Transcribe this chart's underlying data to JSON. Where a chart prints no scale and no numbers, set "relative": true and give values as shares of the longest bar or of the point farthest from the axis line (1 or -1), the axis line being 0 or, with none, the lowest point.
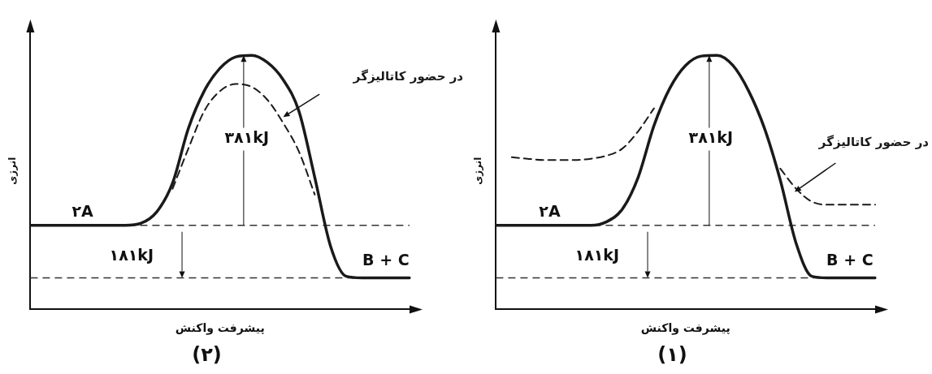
{
  "chart_data": [
    {
      "type": "line",
      "title": "(۱)",
      "xlabel": "پیشرفت واکنش",
      "ylabel": "انرژی",
      "relative": true,
      "marker": "none",
      "legend": false,
      "categories": [
        null,
        null,
        null,
        null,
        null,
        null,
        null,
        null,
        null,
        null,
        null,
        null,
        null,
        null,
        null,
        null,
        null,
        null,
        null,
        null,
        null,
        null,
        null,
        null,
        null
      ],
      "series": [
        {
          "color": "#1a1a1a",
          "line_style": "solid",
          "values": [
            0.331,
            0.331,
            0.331,
            0.331,
            0.331,
            0.331,
            0.331,
            0.345,
            0.395,
            0.52,
            0.723,
            0.87,
            0.96,
            0.997,
            1,
            0.96,
            0.859,
            0.712,
            0.508,
            0.26,
            0.13,
            0.124,
            0.124,
            0.124,
            0.124
          ]
        },
        {
          "name": "در حضور کاتالیزگر",
          "color": "#1a1a1a",
          "line_style": "dashed",
          "values": [
            null,
            0.599,
            0.593,
            0.588,
            0.588,
            0.588,
            0.593,
            0.605,
            0.633,
            0.701,
            0.791,
            null,
            null,
            null,
            null,
            null,
            null,
            null,
            0.554,
            0.475,
            0.424,
            0.412,
            0.412,
            0.412,
            0.412
          ]
        }
      ],
      "ref_lines": [
        {
          "axis": "y",
          "value": 0.331,
          "color": "#333333",
          "line_style": "dashed"
        },
        {
          "axis": "y",
          "value": 0.124,
          "color": "#333333",
          "line_style": "dashed"
        }
      ],
      "annotations": [
        "۲A",
        "B + C",
        "۳۸۱kJ",
        "۱۸۱kJ"
      ]
    },
    {
      "type": "line",
      "title": "(۲)",
      "xlabel": "پیشرفت واکنش",
      "ylabel": "انرژی",
      "relative": true,
      "marker": "none",
      "legend": false,
      "categories": [
        null,
        null,
        null,
        null,
        null,
        null,
        null,
        null,
        null,
        null,
        null,
        null,
        null,
        null,
        null,
        null,
        null,
        null,
        null,
        null,
        null,
        null,
        null,
        null,
        null
      ],
      "series": [
        {
          "color": "#1a1a1a",
          "line_style": "solid",
          "values": [
            0.331,
            0.331,
            0.331,
            0.331,
            0.331,
            0.331,
            0.331,
            0.339,
            0.384,
            0.497,
            0.712,
            0.859,
            0.949,
            0.994,
            1,
            0.972,
            0.904,
            0.78,
            0.52,
            0.249,
            0.13,
            0.124,
            0.124,
            0.124,
            0.124
          ]
        },
        {
          "name": "در حضور کاتالیزگر",
          "color": "#1a1a1a",
          "line_style": "dashed",
          "values": [
            null,
            null,
            null,
            null,
            null,
            null,
            null,
            null,
            null,
            0.475,
            0.633,
            0.78,
            0.859,
            0.887,
            0.876,
            0.825,
            0.734,
            0.621,
            0.452,
            null,
            null,
            null,
            null,
            null,
            null
          ]
        }
      ],
      "ref_lines": [
        {
          "axis": "y",
          "value": 0.331,
          "color": "#333333",
          "line_style": "dashed"
        },
        {
          "axis": "y",
          "value": 0.124,
          "color": "#333333",
          "line_style": "dashed"
        }
      ],
      "annotations": [
        "۲A",
        "B + C",
        "۳۸۱kJ",
        "۱۸۱kJ"
      ]
    }
  ]
}
